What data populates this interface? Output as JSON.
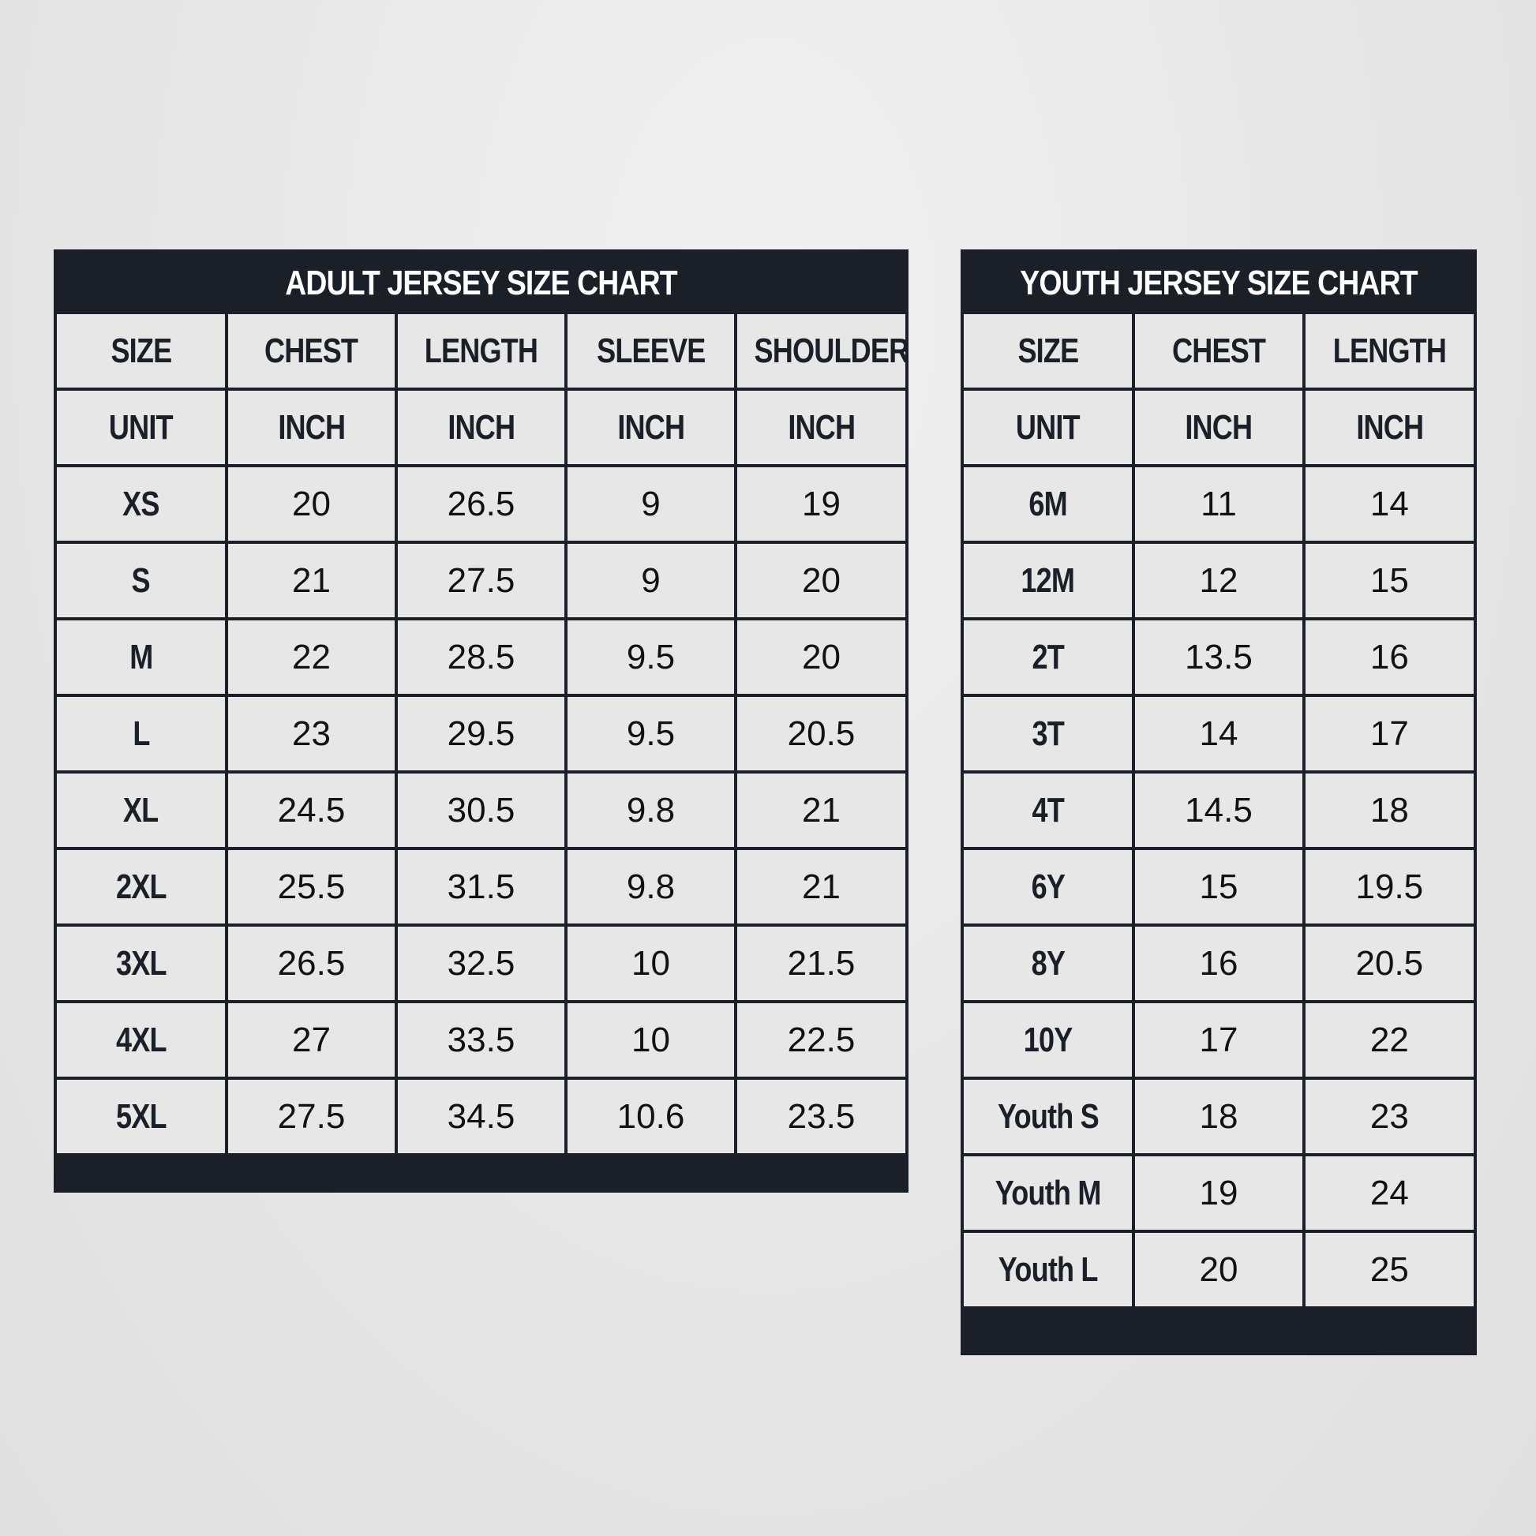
{
  "adult": {
    "title": "ADULT JERSEY SIZE CHART",
    "columns": [
      "SIZE",
      "CHEST",
      "LENGTH",
      "SLEEVE",
      "SHOULDER"
    ],
    "units": [
      "UNIT",
      "INCH",
      "INCH",
      "INCH",
      "INCH"
    ],
    "rows": [
      [
        "XS",
        "20",
        "26.5",
        "9",
        "19"
      ],
      [
        "S",
        "21",
        "27.5",
        "9",
        "20"
      ],
      [
        "M",
        "22",
        "28.5",
        "9.5",
        "20"
      ],
      [
        "L",
        "23",
        "29.5",
        "9.5",
        "20.5"
      ],
      [
        "XL",
        "24.5",
        "30.5",
        "9.8",
        "21"
      ],
      [
        "2XL",
        "25.5",
        "31.5",
        "9.8",
        "21"
      ],
      [
        "3XL",
        "26.5",
        "32.5",
        "10",
        "21.5"
      ],
      [
        "4XL",
        "27",
        "33.5",
        "10",
        "22.5"
      ],
      [
        "5XL",
        "27.5",
        "34.5",
        "10.6",
        "23.5"
      ]
    ]
  },
  "youth": {
    "title": "YOUTH JERSEY SIZE CHART",
    "columns": [
      "SIZE",
      "CHEST",
      "LENGTH"
    ],
    "units": [
      "UNIT",
      "INCH",
      "INCH"
    ],
    "rows": [
      [
        "6M",
        "11",
        "14"
      ],
      [
        "12M",
        "12",
        "15"
      ],
      [
        "2T",
        "13.5",
        "16"
      ],
      [
        "3T",
        "14",
        "17"
      ],
      [
        "4T",
        "14.5",
        "18"
      ],
      [
        "6Y",
        "15",
        "19.5"
      ],
      [
        "8Y",
        "16",
        "20.5"
      ],
      [
        "10Y",
        "17",
        "22"
      ],
      [
        "Youth S",
        "18",
        "23"
      ],
      [
        "Youth M",
        "19",
        "24"
      ],
      [
        "Youth L",
        "20",
        "25"
      ]
    ]
  },
  "colors": {
    "header_bg": "#1b1f28",
    "cell_bg": "#e7e7e7",
    "header_text": "#ffffff"
  }
}
